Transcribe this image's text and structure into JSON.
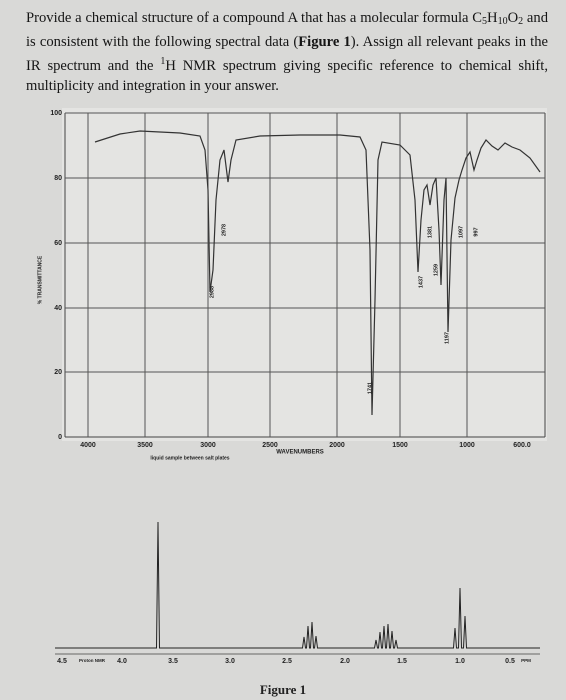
{
  "question": {
    "segments": [
      {
        "text": "Provide a chemical structure of a compound A that has a molecular formula C",
        "style": "normal"
      },
      {
        "text": "5",
        "style": "sub"
      },
      {
        "text": "H",
        "style": "normal"
      },
      {
        "text": "10",
        "style": "sub"
      },
      {
        "text": "O",
        "style": "normal"
      },
      {
        "text": "2",
        "style": "sub"
      },
      {
        "text": " and is consistent with the following spectral data (",
        "style": "normal"
      },
      {
        "text": "Figure 1",
        "style": "bold"
      },
      {
        "text": "). Assign all relevant peaks in the IR spectrum and the ",
        "style": "normal"
      },
      {
        "text": "1",
        "style": "sup"
      },
      {
        "text": "H NMR spectrum giving specific reference to chemical shift, multiplicity and integration in your answer.",
        "style": "normal"
      }
    ]
  },
  "ir": {
    "y_axis_title": "% TRANSMITTANCE",
    "y_labels": [
      "100",
      "80",
      "60",
      "40",
      "20",
      "0"
    ],
    "x_labels": [
      "4000",
      "3500",
      "3000",
      "2500",
      "2000",
      "1500",
      "1000",
      "600.0"
    ],
    "x_axis_title": "WAVENUMBERS",
    "sample_note": "liquid sample between salt plates",
    "peak_labels": [
      "2978",
      "2988",
      "1741",
      "1437",
      "1381",
      "1259",
      "1197",
      "1097",
      "997"
    ]
  },
  "nmr": {
    "x_labels": [
      "4.5",
      "Proton NMR",
      "4.0",
      "3.5",
      "3.0",
      "2.5",
      "2.0",
      "1.5",
      "1.0",
      "0.5",
      "PPM"
    ]
  },
  "caption": "Figure 1"
}
